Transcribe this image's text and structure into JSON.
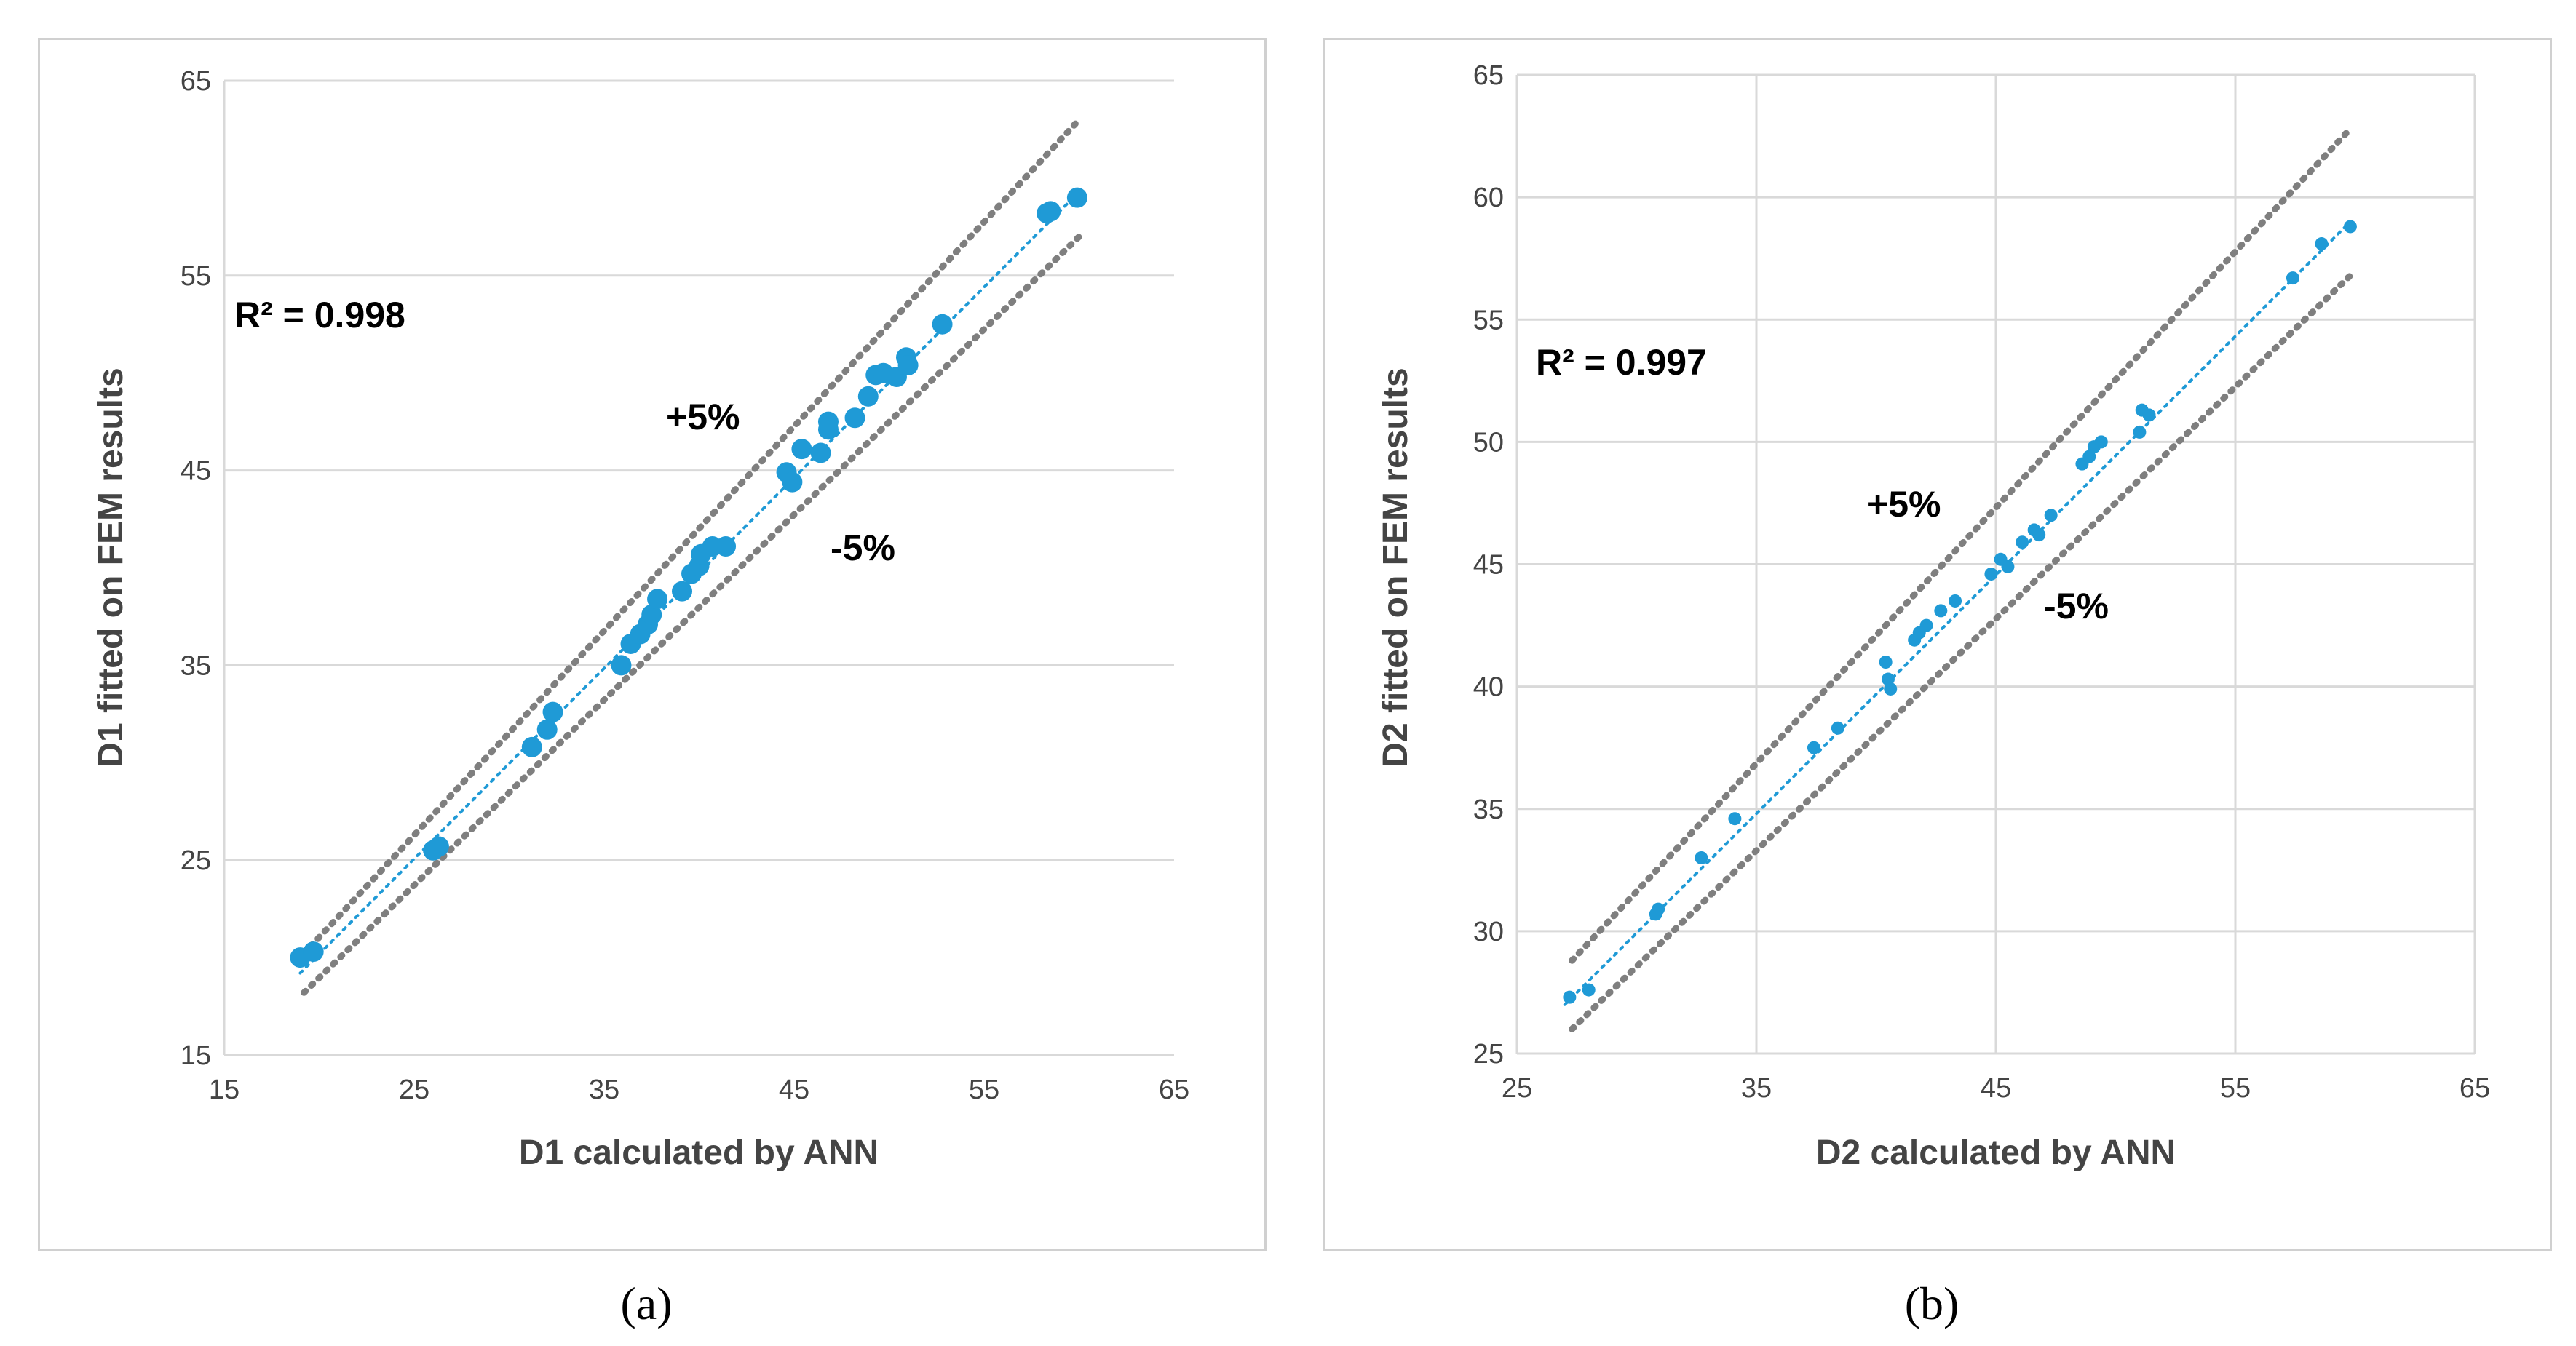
{
  "panels": [
    {
      "caption": "(a)",
      "chart_data": {
        "type": "scatter",
        "xlabel": "D1 calculated by ANN",
        "ylabel": "D1 fitted on FEM results",
        "xlim": [
          15,
          65
        ],
        "ylim": [
          15,
          65
        ],
        "xticks": [
          15,
          25,
          35,
          45,
          55,
          65
        ],
        "yticks": [
          15,
          25,
          35,
          45,
          55,
          65
        ],
        "grid": "horizontal",
        "annotations": {
          "r2": "R² = 0.998",
          "plus": "+5%",
          "minus": "-5%"
        },
        "series": [
          {
            "name": "data",
            "color": "#1f9ad6",
            "points": [
              [
                19.0,
                20.0
              ],
              [
                19.7,
                20.3
              ],
              [
                26.0,
                25.5
              ],
              [
                26.3,
                25.7
              ],
              [
                31.2,
                30.8
              ],
              [
                32.0,
                31.7
              ],
              [
                32.3,
                32.6
              ],
              [
                35.9,
                35.0
              ],
              [
                36.4,
                36.1
              ],
              [
                36.9,
                36.6
              ],
              [
                37.3,
                37.1
              ],
              [
                37.5,
                37.6
              ],
              [
                37.8,
                38.4
              ],
              [
                39.1,
                38.8
              ],
              [
                39.6,
                39.7
              ],
              [
                40.0,
                40.1
              ],
              [
                40.1,
                40.7
              ],
              [
                40.7,
                41.1
              ],
              [
                41.4,
                41.1
              ],
              [
                44.6,
                44.9
              ],
              [
                44.9,
                44.4
              ],
              [
                45.4,
                46.1
              ],
              [
                46.4,
                45.9
              ],
              [
                46.8,
                47.1
              ],
              [
                46.8,
                47.5
              ],
              [
                48.2,
                47.7
              ],
              [
                48.9,
                48.8
              ],
              [
                49.3,
                49.9
              ],
              [
                49.7,
                50.0
              ],
              [
                50.4,
                49.8
              ],
              [
                50.9,
                50.8
              ],
              [
                51.0,
                50.4
              ],
              [
                52.8,
                52.5
              ],
              [
                58.3,
                58.2
              ],
              [
                58.5,
                58.3
              ],
              [
                59.9,
                59.0
              ]
            ]
          },
          {
            "name": "trend",
            "color": "#1f9ad6",
            "style": "dotted",
            "line": [
              [
                19.0,
                19.2
              ],
              [
                60.0,
                59.3
              ]
            ]
          },
          {
            "name": "+5%",
            "color": "#7f7f7f",
            "style": "dotted",
            "line": [
              [
                19.2,
                20.2
              ],
              [
                60.0,
                63.0
              ]
            ]
          },
          {
            "name": "-5%",
            "color": "#7f7f7f",
            "style": "dotted",
            "line": [
              [
                19.2,
                18.2
              ],
              [
                60.0,
                57.0
              ]
            ]
          }
        ]
      }
    },
    {
      "caption": "(b)",
      "chart_data": {
        "type": "scatter",
        "xlabel": "D2 calculated by ANN",
        "ylabel": "D2 fitted on FEM results",
        "xlim": [
          25,
          65
        ],
        "ylim": [
          25,
          65
        ],
        "xticks": [
          25,
          35,
          45,
          55,
          65
        ],
        "yticks": [
          25,
          30,
          35,
          40,
          45,
          50,
          55,
          60,
          65
        ],
        "grid": "both",
        "annotations": {
          "r2": "R² = 0.997",
          "plus": "+5%",
          "minus": "-5%"
        },
        "series": [
          {
            "name": "data",
            "color": "#1f9ad6",
            "points": [
              [
                27.2,
                27.3
              ],
              [
                28.0,
                27.6
              ],
              [
                30.8,
                30.7
              ],
              [
                30.9,
                30.9
              ],
              [
                32.7,
                33.0
              ],
              [
                34.1,
                34.6
              ],
              [
                37.4,
                37.5
              ],
              [
                38.4,
                38.3
              ],
              [
                40.4,
                41.0
              ],
              [
                40.5,
                40.3
              ],
              [
                40.6,
                39.9
              ],
              [
                41.6,
                41.9
              ],
              [
                41.8,
                42.2
              ],
              [
                42.1,
                42.5
              ],
              [
                42.7,
                43.1
              ],
              [
                43.3,
                43.5
              ],
              [
                44.8,
                44.6
              ],
              [
                45.2,
                45.2
              ],
              [
                45.5,
                44.9
              ],
              [
                46.1,
                45.9
              ],
              [
                46.6,
                46.4
              ],
              [
                46.8,
                46.2
              ],
              [
                47.3,
                47.0
              ],
              [
                48.6,
                49.1
              ],
              [
                48.9,
                49.4
              ],
              [
                49.1,
                49.8
              ],
              [
                49.4,
                50.0
              ],
              [
                51.0,
                50.4
              ],
              [
                51.1,
                51.3
              ],
              [
                51.4,
                51.1
              ],
              [
                57.4,
                56.7
              ],
              [
                58.6,
                58.1
              ],
              [
                59.8,
                58.8
              ]
            ]
          },
          {
            "name": "trend",
            "color": "#1f9ad6",
            "style": "dotted",
            "line": [
              [
                27.0,
                27.0
              ],
              [
                59.8,
                59.0
              ]
            ]
          },
          {
            "name": "+5%",
            "color": "#7f7f7f",
            "style": "dotted",
            "line": [
              [
                27.3,
                28.8
              ],
              [
                59.8,
                62.8
              ]
            ]
          },
          {
            "name": "-5%",
            "color": "#7f7f7f",
            "style": "dotted",
            "line": [
              [
                27.3,
                26.0
              ],
              [
                59.8,
                56.8
              ]
            ]
          }
        ]
      }
    }
  ]
}
